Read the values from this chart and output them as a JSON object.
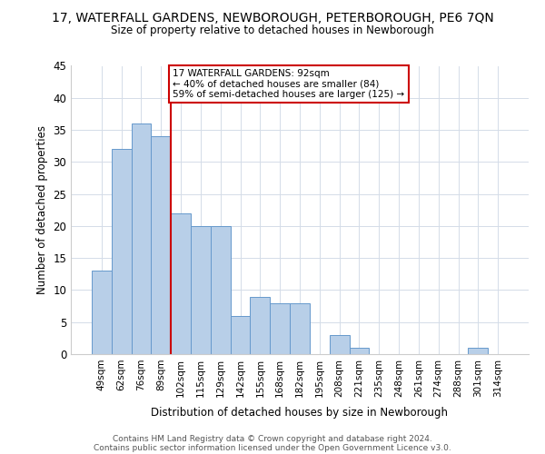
{
  "title": "17, WATERFALL GARDENS, NEWBOROUGH, PETERBOROUGH, PE6 7QN",
  "subtitle": "Size of property relative to detached houses in Newborough",
  "xlabel": "Distribution of detached houses by size in Newborough",
  "ylabel": "Number of detached properties",
  "categories": [
    "49sqm",
    "62sqm",
    "76sqm",
    "89sqm",
    "102sqm",
    "115sqm",
    "129sqm",
    "142sqm",
    "155sqm",
    "168sqm",
    "182sqm",
    "195sqm",
    "208sqm",
    "221sqm",
    "235sqm",
    "248sqm",
    "261sqm",
    "274sqm",
    "288sqm",
    "301sqm",
    "314sqm"
  ],
  "values": [
    13,
    32,
    36,
    34,
    22,
    20,
    20,
    6,
    9,
    8,
    8,
    0,
    3,
    1,
    0,
    0,
    0,
    0,
    0,
    1,
    0
  ],
  "bar_color": "#b8cfe8",
  "bar_edge_color": "#6699cc",
  "vline_x": 3.5,
  "vline_color": "#cc0000",
  "annotation_text": "17 WATERFALL GARDENS: 92sqm\n← 40% of detached houses are smaller (84)\n59% of semi-detached houses are larger (125) →",
  "annotation_box_color": "#cc0000",
  "ylim": [
    0,
    45
  ],
  "yticks": [
    0,
    5,
    10,
    15,
    20,
    25,
    30,
    35,
    40,
    45
  ],
  "footer1": "Contains HM Land Registry data © Crown copyright and database right 2024.",
  "footer2": "Contains public sector information licensed under the Open Government Licence v3.0.",
  "background_color": "#ffffff",
  "grid_color": "#d4dce8"
}
